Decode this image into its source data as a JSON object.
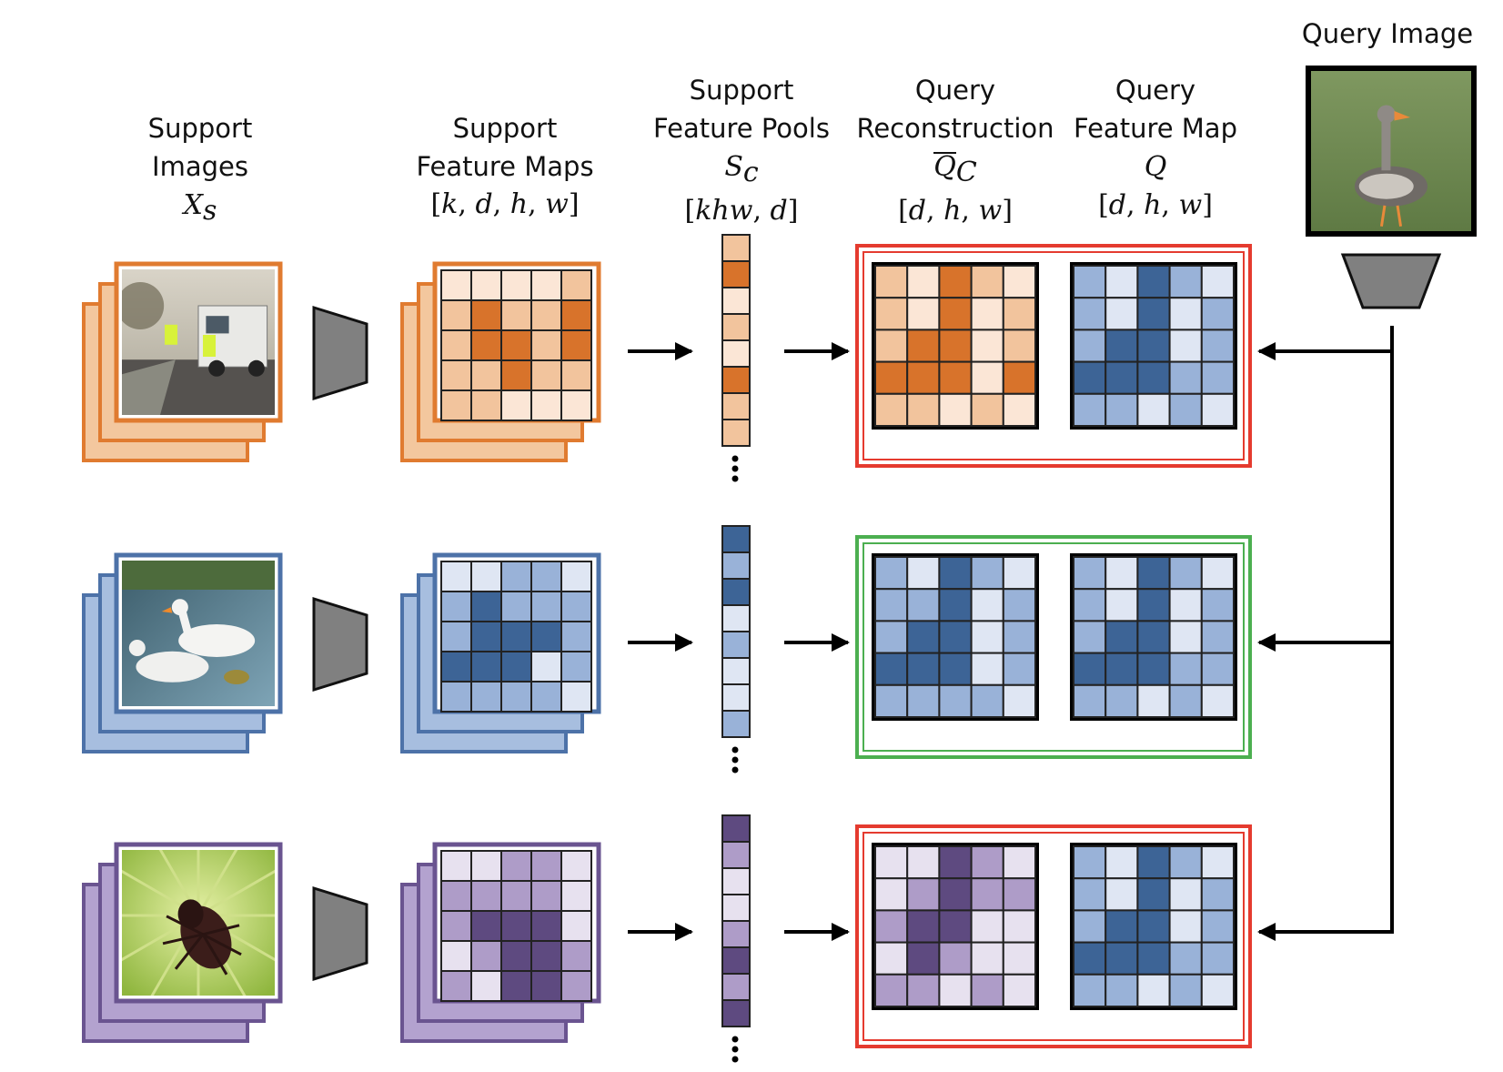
{
  "headers": {
    "support_images": {
      "line1": "Support",
      "line2": "Images",
      "symbol": "X",
      "symbol_sub": "s"
    },
    "support_feature_maps": {
      "line1": "Support",
      "line2": "Feature Maps",
      "shape_open": "[",
      "k": "k",
      "d": "d",
      "h": "h",
      "w": "w",
      "sep": ", ",
      "shape_close": "]"
    },
    "support_feature_pools": {
      "line1": "Support",
      "line2": "Feature Pools",
      "symbol": "S",
      "symbol_sub": "c",
      "shape_open": "[",
      "khw": "khw",
      "d": "d",
      "sep": ", ",
      "shape_close": "]"
    },
    "query_reconstruction": {
      "line1": "Query",
      "line2": "Reconstruction",
      "symbol": "Q",
      "symbol_sub": "C",
      "shape_open": "[",
      "d": "d",
      "h": "h",
      "w": "w",
      "sep": ", ",
      "shape_close": "]"
    },
    "query_feature_map": {
      "line1": "Query",
      "line2": "Feature Map",
      "symbol": "Q",
      "shape_open": "[",
      "d": "d",
      "h": "h",
      "w": "w",
      "sep": ", ",
      "shape_close": "]"
    },
    "query_image": {
      "label": "Query Image"
    }
  },
  "colors": {
    "orange": [
      "#fbe6d6",
      "#f2c49d",
      "#d8732b"
    ],
    "blue": [
      "#dfe6f3",
      "#99b2d8",
      "#3d6496"
    ],
    "purple": [
      "#e7e1ef",
      "#ae9cc8",
      "#5e4a80"
    ],
    "orange_frame": "#e07b30",
    "orange_stack": "#f3c79e",
    "blue_frame": "#4d72a8",
    "blue_stack": "#a7bedf",
    "purple_frame": "#6a5490",
    "purple_stack": "#b3a2cf",
    "red_box": "#e53b2f",
    "green_box": "#4caf50",
    "trapezoid": "#808080"
  },
  "rows": [
    {
      "class": "orange",
      "image_icon": "garbage-truck-photo",
      "match": "red",
      "support_map": [
        [
          0,
          0,
          0,
          0,
          1
        ],
        [
          1,
          2,
          1,
          1,
          2
        ],
        [
          1,
          2,
          2,
          1,
          2
        ],
        [
          1,
          1,
          2,
          1,
          1
        ],
        [
          1,
          1,
          0,
          0,
          0
        ]
      ],
      "pool": [
        1,
        2,
        0,
        1,
        0,
        2,
        1,
        1
      ],
      "reconstruction": [
        [
          1,
          0,
          2,
          1,
          0
        ],
        [
          1,
          0,
          2,
          0,
          1
        ],
        [
          1,
          2,
          2,
          0,
          1
        ],
        [
          2,
          2,
          2,
          0,
          2
        ],
        [
          1,
          1,
          0,
          1,
          0
        ]
      ]
    },
    {
      "class": "blue",
      "image_icon": "geese-on-water-photo",
      "match": "green",
      "support_map": [
        [
          0,
          0,
          1,
          1,
          0
        ],
        [
          1,
          2,
          1,
          1,
          1
        ],
        [
          1,
          2,
          2,
          2,
          1
        ],
        [
          2,
          2,
          2,
          0,
          1
        ],
        [
          1,
          1,
          1,
          1,
          0
        ]
      ],
      "pool": [
        2,
        1,
        2,
        0,
        1,
        0,
        0,
        1
      ],
      "reconstruction": [
        [
          1,
          0,
          2,
          1,
          0
        ],
        [
          1,
          1,
          2,
          0,
          1
        ],
        [
          1,
          2,
          2,
          0,
          1
        ],
        [
          2,
          2,
          2,
          0,
          1
        ],
        [
          1,
          1,
          1,
          1,
          0
        ]
      ]
    },
    {
      "class": "purple",
      "image_icon": "beetle-on-leaf-photo",
      "match": "red",
      "support_map": [
        [
          0,
          0,
          1,
          1,
          0
        ],
        [
          1,
          1,
          1,
          1,
          0
        ],
        [
          1,
          2,
          2,
          2,
          0
        ],
        [
          0,
          1,
          2,
          2,
          1
        ],
        [
          1,
          0,
          2,
          2,
          1
        ]
      ],
      "pool": [
        2,
        1,
        0,
        0,
        1,
        2,
        1,
        2
      ],
      "reconstruction": [
        [
          0,
          0,
          2,
          1,
          0
        ],
        [
          0,
          1,
          2,
          1,
          1
        ],
        [
          1,
          2,
          2,
          0,
          0
        ],
        [
          0,
          2,
          1,
          0,
          0
        ],
        [
          1,
          1,
          0,
          1,
          0
        ]
      ]
    }
  ],
  "query_feature_map": [
    [
      1,
      0,
      2,
      1,
      0
    ],
    [
      1,
      0,
      2,
      0,
      1
    ],
    [
      1,
      2,
      2,
      0,
      1
    ],
    [
      2,
      2,
      2,
      1,
      1
    ],
    [
      1,
      1,
      0,
      1,
      0
    ]
  ],
  "query_image_icon": "goose-photo"
}
